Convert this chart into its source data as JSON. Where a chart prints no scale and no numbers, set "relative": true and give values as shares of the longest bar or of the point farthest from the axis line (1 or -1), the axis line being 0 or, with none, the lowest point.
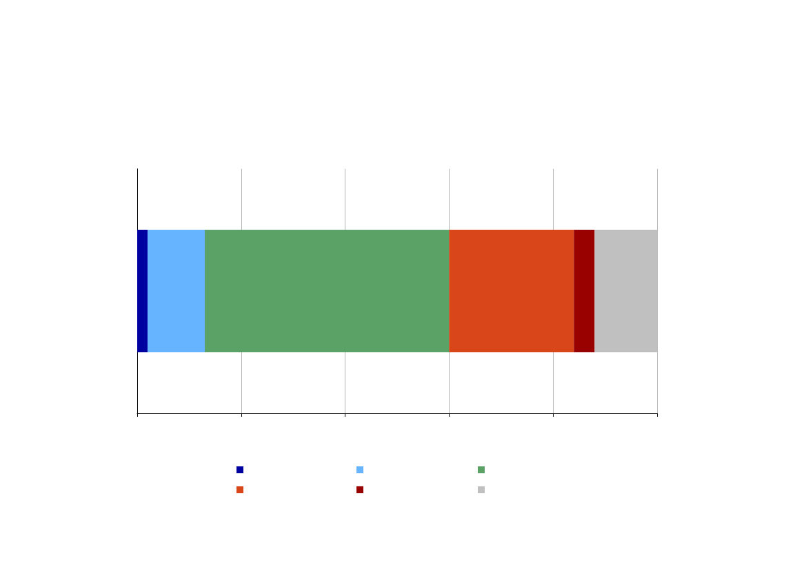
{
  "chart_data": {
    "type": "bar",
    "orientation": "horizontal",
    "stacked": true,
    "relative": true,
    "categories": [
      null
    ],
    "grid": "x",
    "series": [
      {
        "color": "#0000a0",
        "values": [
          0.02
        ]
      },
      {
        "color": "#66b3ff",
        "values": [
          0.11
        ]
      },
      {
        "color": "#5ba267",
        "values": [
          0.47
        ]
      },
      {
        "color": "#d9461a",
        "values": [
          0.24
        ]
      },
      {
        "color": "#990000",
        "values": [
          0.04
        ]
      },
      {
        "color": "#c0c0c0",
        "values": [
          0.12
        ]
      }
    ]
  }
}
